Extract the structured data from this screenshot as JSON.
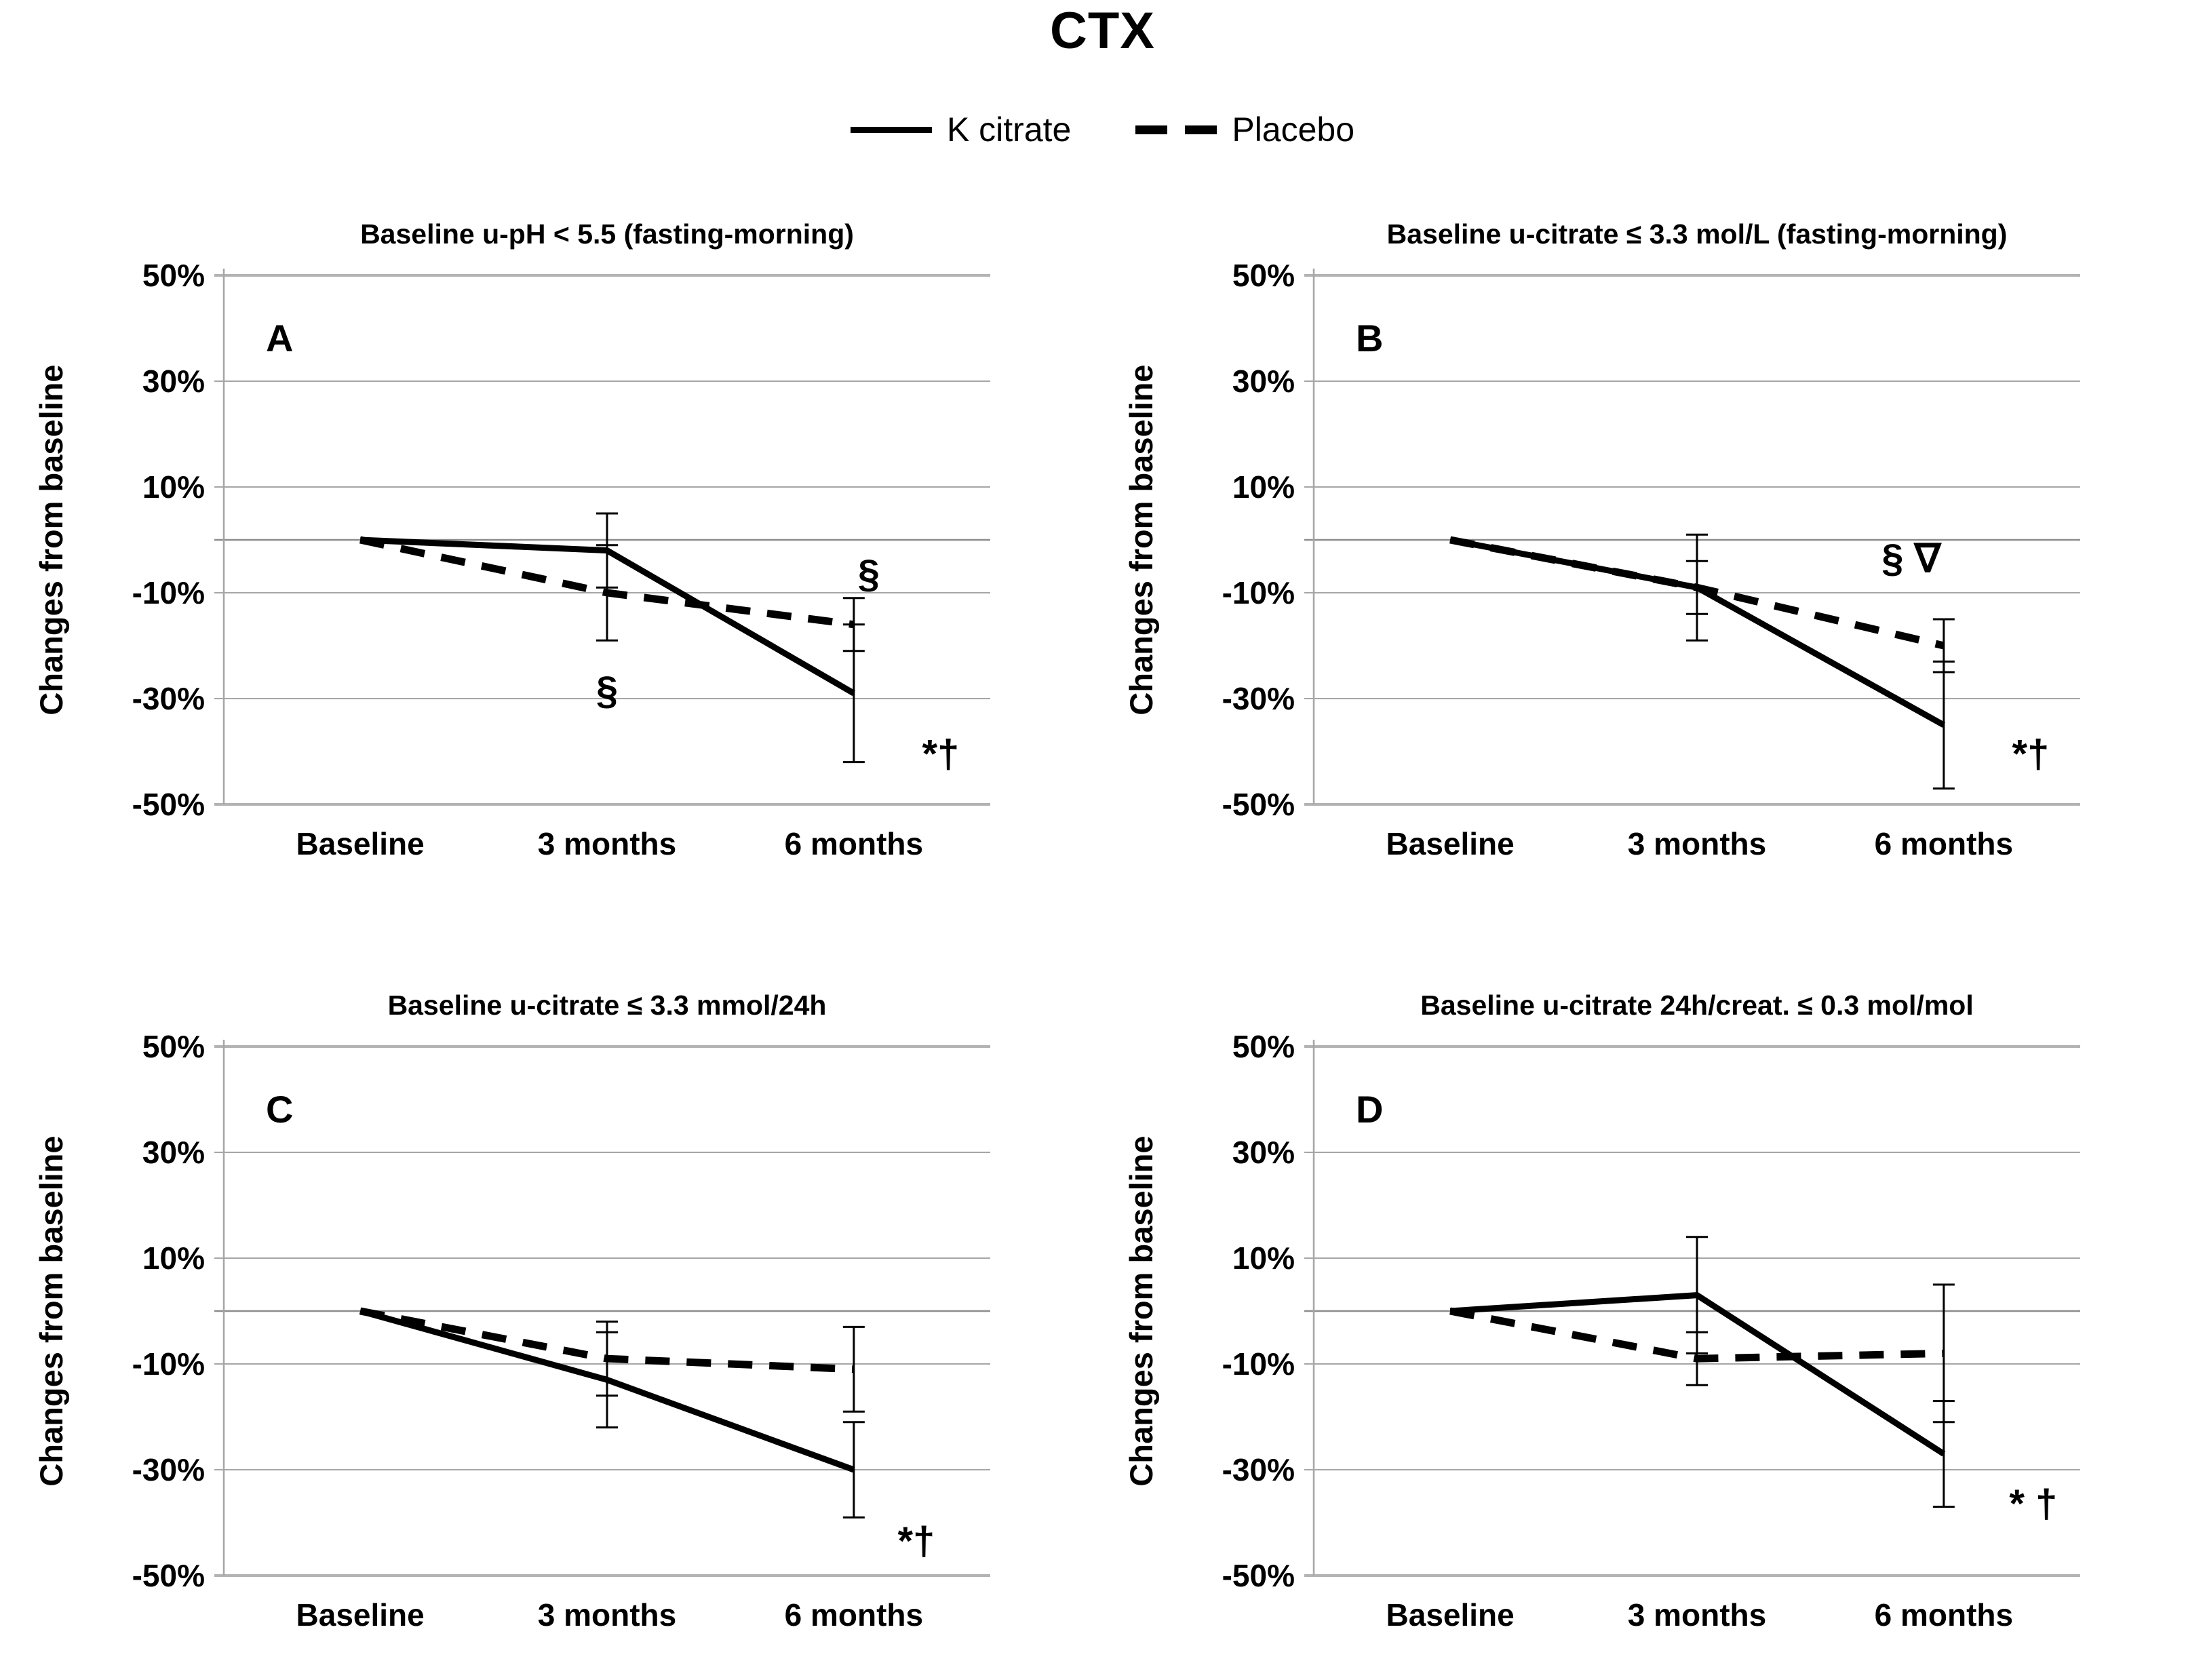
{
  "figure_title": "CTX",
  "chart_data": {
    "type": "line",
    "figure_title": "CTX",
    "ylabel": "Changes from baseline",
    "categories": [
      "Baseline",
      "3 months",
      "6 months"
    ],
    "ylim": [
      -50,
      50
    ],
    "yticks": [
      50,
      30,
      10,
      -10,
      -30,
      -50
    ],
    "ytick_labels": [
      "50%",
      "30%",
      "10%",
      "-10%",
      "-30%",
      "-50%"
    ],
    "zero_gridline": true,
    "grid": true,
    "legend_position": "top-center",
    "legend": [
      {
        "label": "K citrate",
        "style": "solid",
        "color": "#000000"
      },
      {
        "label": "Placebo",
        "style": "dashed",
        "color": "#000000"
      }
    ],
    "panels": [
      {
        "letter": "A",
        "title": "Baseline u-pH < 5.5 (fasting-morning)",
        "series": [
          {
            "name": "K citrate",
            "style": "solid",
            "values": [
              0,
              -2,
              -29
            ],
            "errors": [
              null,
              7,
              13
            ]
          },
          {
            "name": "Placebo",
            "style": "dashed",
            "values": [
              0,
              -10,
              -16
            ],
            "errors": [
              null,
              9,
              5
            ]
          }
        ],
        "annotations": [
          {
            "text": "§",
            "category_index": 1,
            "value": -31,
            "dx": 0
          },
          {
            "text": "§",
            "category_index": 2,
            "value": -9,
            "dx": 22
          },
          {
            "text": "*†",
            "category_index": 2,
            "value": -43,
            "dx": 128
          }
        ]
      },
      {
        "letter": "B",
        "title": "Baseline u-citrate ≤ 3.3 mol/L (fasting-morning)",
        "series": [
          {
            "name": "K citrate",
            "style": "solid",
            "values": [
              0,
              -9,
              -35
            ],
            "errors": [
              null,
              10,
              12
            ]
          },
          {
            "name": "Placebo",
            "style": "dashed",
            "values": [
              0,
              -9,
              -20
            ],
            "errors": [
              null,
              5,
              5
            ]
          }
        ],
        "annotations": [
          {
            "text": "§ ∇",
            "category_index": 2,
            "value": -6,
            "dx": -48
          },
          {
            "text": "*†",
            "category_index": 2,
            "value": -43,
            "dx": 128
          }
        ]
      },
      {
        "letter": "C",
        "title": "Baseline u-citrate ≤ 3.3 mmol/24h",
        "series": [
          {
            "name": "K citrate",
            "style": "solid",
            "values": [
              0,
              -13,
              -30
            ],
            "errors": [
              null,
              9,
              9
            ]
          },
          {
            "name": "Placebo",
            "style": "dashed",
            "values": [
              0,
              -9,
              -11
            ],
            "errors": [
              null,
              7,
              8
            ]
          }
        ],
        "annotations": [
          {
            "text": "*†",
            "category_index": 2,
            "value": -46,
            "dx": 92
          }
        ]
      },
      {
        "letter": "D",
        "title": "Baseline u-citrate 24h/creat. ≤ 0.3 mol/mol",
        "series": [
          {
            "name": "K citrate",
            "style": "solid",
            "values": [
              0,
              3,
              -27
            ],
            "errors": [
              null,
              11,
              10
            ]
          },
          {
            "name": "Placebo",
            "style": "dashed",
            "values": [
              0,
              -9,
              -8
            ],
            "errors": [
              null,
              5,
              13
            ]
          }
        ],
        "annotations": [
          {
            "text": "* †",
            "category_index": 2,
            "value": -39,
            "dx": 132
          }
        ]
      }
    ],
    "colors": {
      "series": "#000000",
      "gridline": "#a6a6a6",
      "gridline_strong": "#b3b3b3",
      "zero_line": "#8c8c8c",
      "text": "#000000"
    }
  }
}
